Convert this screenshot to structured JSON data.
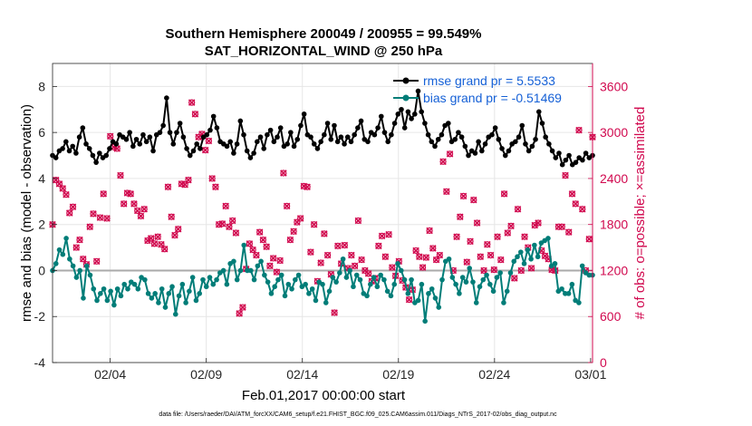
{
  "chart_data": {
    "type": "line",
    "title": "Southern Hemisphere 200049 / 200955 = 99.549%",
    "subtitle": "SAT_HORIZONTAL_WIND @ 250 hPa",
    "xlabel": "Feb.01,2017 00:00:00 start",
    "ylabel": "rmse and bias (model - observation)",
    "y2label": "# of obs: o=possible; ×=assimilated",
    "footnote": "data file: /Users/raeder/DAI/ATM_forcXX/CAM6_setup/f.e21.FHIST_BGC.f09_025.CAM6assim.011/Diags_NTrS_2017-02/obs_diag_output.nc",
    "xlim": [
      0,
      28.1
    ],
    "ylim": [
      -4,
      9
    ],
    "y2lim": [
      0,
      3900
    ],
    "x_ticks": [
      {
        "x": 3,
        "label": "02/04"
      },
      {
        "x": 8,
        "label": "02/09"
      },
      {
        "x": 13,
        "label": "02/14"
      },
      {
        "x": 18,
        "label": "02/19"
      },
      {
        "x": 23,
        "label": "02/24"
      },
      {
        "x": 28,
        "label": "03/01"
      }
    ],
    "y_ticks": [
      -4,
      -2,
      0,
      2,
      4,
      6,
      8
    ],
    "y2_ticks": [
      0,
      600,
      1200,
      1800,
      2400,
      3000,
      3600
    ],
    "grid": true,
    "legend_position": "top-right",
    "colors": {
      "rmse": "#000000",
      "bias": "#007d78",
      "obs": "#d1094f",
      "zero_line": "#aaaaaa",
      "legend_text": "#1560d6"
    },
    "series": [
      {
        "name": "rmse grand pr = 5.5533",
        "axis": "left",
        "marker": "circle",
        "values": [
          5.0,
          4.9,
          5.2,
          5.3,
          5.6,
          5.2,
          5.4,
          5.1,
          5.8,
          6.2,
          5.5,
          5.3,
          5.0,
          4.7,
          5.1,
          4.9,
          5.0,
          5.3,
          5.6,
          5.5,
          5.9,
          5.8,
          5.7,
          6.0,
          5.4,
          5.7,
          5.5,
          5.9,
          5.6,
          5.8,
          5.2,
          5.9,
          6.0,
          6.3,
          7.5,
          6.0,
          5.5,
          6.0,
          6.4,
          5.8,
          5.3,
          5.0,
          5.2,
          5.5,
          5.3,
          5.8,
          5.9,
          6.1,
          6.7,
          6.2,
          5.6,
          5.5,
          5.4,
          5.6,
          5.1,
          5.5,
          6.5,
          5.9,
          5.2,
          4.9,
          5.1,
          5.6,
          5.8,
          5.3,
          5.9,
          6.1,
          5.6,
          5.8,
          6.2,
          5.4,
          5.5,
          6.0,
          5.4,
          5.7,
          6.3,
          6.8,
          5.9,
          5.8,
          5.5,
          5.3,
          5.6,
          5.9,
          6.4,
          5.7,
          6.3,
          5.6,
          5.8,
          5.5,
          5.8,
          5.6,
          5.9,
          6.2,
          6.5,
          5.7,
          5.6,
          6.0,
          5.9,
          6.2,
          6.7,
          6.0,
          5.6,
          5.9,
          6.4,
          6.8,
          7.0,
          6.2,
          6.9,
          6.6,
          6.8,
          7.8,
          6.9,
          6.4,
          5.9,
          5.6,
          5.4,
          5.7,
          5.9,
          6.3,
          6.4,
          5.6,
          5.7,
          6.0,
          5.8,
          5.4,
          5.0,
          5.2,
          5.1,
          5.6,
          5.2,
          5.5,
          5.8,
          5.9,
          6.2,
          5.7,
          5.3,
          5.0,
          5.2,
          5.5,
          5.6,
          5.8,
          6.3,
          5.5,
          5.2,
          5.4,
          5.7,
          6.9,
          6.4,
          5.8,
          5.5,
          5.2,
          4.9,
          5.1,
          4.6,
          4.8,
          5.0,
          4.6,
          4.7,
          4.9,
          4.8,
          5.1,
          4.9,
          5.0
        ]
      },
      {
        "name": "bias grand pr = -0.51469",
        "axis": "left",
        "marker": "circle",
        "values": [
          0.0,
          0.3,
          0.9,
          0.7,
          1.4,
          0.5,
          0.2,
          -0.3,
          0.0,
          -1.2,
          0.2,
          -0.2,
          -0.8,
          -1.3,
          -1.0,
          -0.8,
          -1.3,
          -0.9,
          -1.5,
          -0.8,
          -1.1,
          -0.6,
          -0.8,
          -0.5,
          -0.6,
          -0.8,
          -0.3,
          -0.4,
          -1.0,
          -1.2,
          -1.0,
          -1.4,
          -0.8,
          -1.6,
          -1.0,
          -0.7,
          -1.9,
          -1.1,
          -0.6,
          -1.4,
          -0.9,
          -0.3,
          -1.3,
          -1.0,
          -0.4,
          -0.7,
          -0.3,
          -0.6,
          -0.4,
          -0.1,
          0.0,
          -0.6,
          0.3,
          0.4,
          -0.4,
          0.0,
          1.1,
          0.0,
          0.0,
          -0.4,
          0.2,
          0.4,
          -0.2,
          -0.5,
          -1.0,
          -0.7,
          -0.4,
          -0.2,
          -1.1,
          -0.6,
          -0.8,
          -0.4,
          -0.2,
          -0.7,
          -0.6,
          -1.0,
          -0.8,
          -1.3,
          -0.5,
          -0.6,
          -1.4,
          -0.9,
          -0.3,
          -0.5,
          -0.1,
          0.5,
          -0.3,
          0.0,
          -0.7,
          -0.2,
          -0.4,
          -1.0,
          -1.1,
          -0.6,
          -0.3,
          -0.7,
          -0.2,
          -0.4,
          -0.9,
          -1.1,
          -0.6,
          0.3,
          0.0,
          -0.4,
          -1.0,
          -0.4,
          -1.4,
          -1.3,
          -0.6,
          -2.2,
          -1.0,
          -0.8,
          -1.2,
          -1.6,
          -0.4,
          0.4,
          0.5,
          -0.3,
          -0.6,
          -1.0,
          -0.3,
          -0.5,
          0.1,
          -0.5,
          -1.4,
          -0.7,
          -0.4,
          -0.2,
          -0.6,
          -0.9,
          -0.3,
          -0.1,
          -1.4,
          -0.9,
          -0.1,
          0.4,
          0.6,
          0.8,
          0.3,
          0.9,
          0.5,
          1.1,
          0.6,
          1.2,
          1.3,
          1.4,
          0.2,
          0.3,
          -0.9,
          -0.8,
          -1.0,
          -1.0,
          -0.6,
          -1.3,
          -1.4,
          0.2,
          -0.1,
          -0.2,
          -0.2
        ]
      },
      {
        "name": "obs_possible",
        "axis": "right",
        "marker": "circle-open",
        "values": [
          1800,
          2380,
          2330,
          2270,
          2190,
          1950,
          2030,
          1500,
          1600,
          1350,
          1280,
          1770,
          1940,
          1320,
          1890,
          2200,
          1880,
          2950,
          2810,
          2790,
          2440,
          2070,
          2210,
          2200,
          2070,
          1980,
          1910,
          2000,
          1590,
          1620,
          1550,
          1640,
          1540,
          1480,
          2290,
          1900,
          1660,
          1740,
          2330,
          2320,
          2380,
          3390,
          3240,
          2940,
          2980,
          2770,
          2890,
          2400,
          2290,
          1800,
          1810,
          2040,
          1770,
          1850,
          1690,
          640,
          720,
          1220,
          1550,
          1470,
          1400,
          1700,
          1600,
          1510,
          1260,
          1360,
          1180,
          1330,
          2470,
          2040,
          1600,
          1710,
          1830,
          1880,
          2300,
          2290,
          1440,
          1800,
          1060,
          1300,
          1680,
          1400,
          1150,
          650,
          1520,
          1290,
          1530,
          1230,
          1400,
          1260,
          1850,
          1340,
          1200,
          1160,
          1060,
          1100,
          1520,
          1650,
          1380,
          1670,
          1240,
          1130,
          1320,
          1070,
          980,
          820,
          950,
          1460,
          1380,
          1240,
          1370,
          1720,
          1490,
          1340,
          1400,
          2620,
          2230,
          2720,
          1200,
          1640,
          1900,
          2170,
          1310,
          1580,
          2120,
          1820,
          1380,
          1200,
          1540,
          1400,
          1210,
          1640,
          1340,
          2200,
          1690,
          1780,
          1100,
          2000,
          1200,
          1640,
          1500,
          1230,
          1790,
          1820,
          1460,
          1390,
          1350,
          1210,
          1200,
          1770,
          1770,
          2440,
          1700,
          2200,
          2070,
          3030,
          2000,
          1200,
          1610,
          2940
        ]
      },
      {
        "name": "obs_assimilated",
        "axis": "right",
        "marker": "cross",
        "values": [
          1800,
          2380,
          2330,
          2270,
          2190,
          1950,
          2030,
          1500,
          1600,
          1350,
          1280,
          1770,
          1940,
          1320,
          1890,
          2200,
          1880,
          2950,
          2810,
          2790,
          2440,
          2070,
          2210,
          2200,
          2070,
          1980,
          1910,
          2000,
          1590,
          1620,
          1550,
          1640,
          1540,
          1480,
          2290,
          1900,
          1660,
          1740,
          2330,
          2320,
          2380,
          3390,
          3240,
          2940,
          2980,
          2770,
          2890,
          2400,
          2290,
          1800,
          1810,
          2040,
          1770,
          1850,
          1690,
          640,
          720,
          1220,
          1550,
          1470,
          1400,
          1700,
          1600,
          1510,
          1260,
          1360,
          1180,
          1330,
          2470,
          2040,
          1600,
          1710,
          1830,
          1880,
          2300,
          2290,
          1440,
          1800,
          1060,
          1300,
          1680,
          1400,
          1150,
          650,
          1520,
          1290,
          1530,
          1230,
          1400,
          1260,
          1850,
          1340,
          1200,
          1160,
          1060,
          1100,
          1520,
          1650,
          1380,
          1670,
          1240,
          1130,
          1320,
          1070,
          980,
          820,
          950,
          1460,
          1380,
          1240,
          1370,
          1720,
          1490,
          1340,
          1400,
          2620,
          2230,
          2720,
          1200,
          1640,
          1900,
          2170,
          1310,
          1580,
          2120,
          1820,
          1380,
          1200,
          1540,
          1400,
          1210,
          1640,
          1340,
          2200,
          1690,
          1780,
          1100,
          2000,
          1200,
          1640,
          1500,
          1230,
          1790,
          1820,
          1460,
          1390,
          1350,
          1210,
          1200,
          1770,
          1770,
          2440,
          1700,
          2200,
          2070,
          3030,
          2000,
          1200,
          1610,
          2940
        ]
      }
    ]
  }
}
